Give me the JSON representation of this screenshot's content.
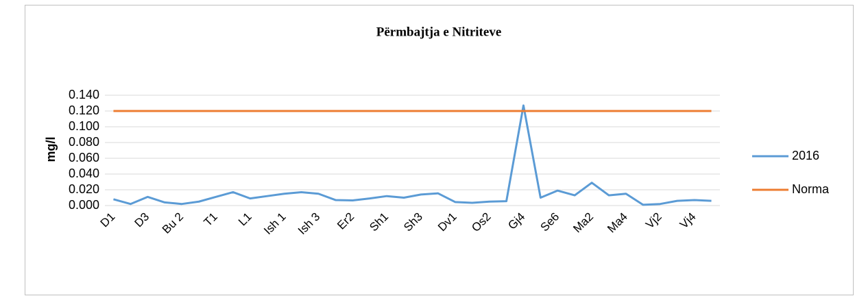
{
  "chart_data": {
    "type": "line",
    "title": "Përmbajtja e Nitriteve",
    "y_label": "mg/l",
    "categories": [
      "D1",
      null,
      "D3",
      null,
      "Bu 2",
      null,
      "T1",
      null,
      "L1",
      null,
      "Ish 1",
      null,
      "Ish 3",
      null,
      "Er2",
      null,
      "Sh1",
      null,
      "Sh3",
      null,
      "Dv1",
      null,
      "Os2",
      null,
      "Gj4",
      null,
      "Se6",
      null,
      "Ma2",
      null,
      "Ma4",
      null,
      "Vj2",
      null,
      "Vj4",
      null
    ],
    "series": [
      {
        "name": "2016",
        "color": "#5b9bd5",
        "values": [
          0.008,
          0.002,
          0.011,
          0.004,
          0.002,
          0.005,
          0.011,
          0.017,
          0.009,
          0.012,
          0.015,
          0.017,
          0.015,
          0.007,
          0.0065,
          0.009,
          0.012,
          0.01,
          0.014,
          0.0155,
          0.0045,
          0.0035,
          0.005,
          0.0055,
          0.127,
          0.01,
          0.019,
          0.013,
          0.029,
          0.013,
          0.015,
          0.001,
          0.002,
          0.006,
          0.007,
          0.006
        ]
      },
      {
        "name": "Norma",
        "color": "#ed7d31",
        "values": [
          0.12,
          0.12,
          0.12,
          0.12,
          0.12,
          0.12,
          0.12,
          0.12,
          0.12,
          0.12,
          0.12,
          0.12,
          0.12,
          0.12,
          0.12,
          0.12,
          0.12,
          0.12,
          0.12,
          0.12,
          0.12,
          0.12,
          0.12,
          0.12,
          0.12,
          0.12,
          0.12,
          0.12,
          0.12,
          0.12,
          0.12,
          0.12,
          0.12,
          0.12,
          0.12,
          0.12
        ]
      }
    ],
    "ylim": [
      0,
      0.14
    ],
    "yticks": [
      {
        "value": 0,
        "label": "0.000"
      },
      {
        "value": 0.02,
        "label": "0.020"
      },
      {
        "value": 0.04,
        "label": "0.040"
      },
      {
        "value": 0.06,
        "label": "0.060"
      },
      {
        "value": 0.08,
        "label": "0.080"
      },
      {
        "value": 0.1,
        "label": "0.100"
      },
      {
        "value": 0.12,
        "label": "0.120"
      },
      {
        "value": 0.14,
        "label": "0.140"
      }
    ],
    "grid": true,
    "legend": "right"
  }
}
